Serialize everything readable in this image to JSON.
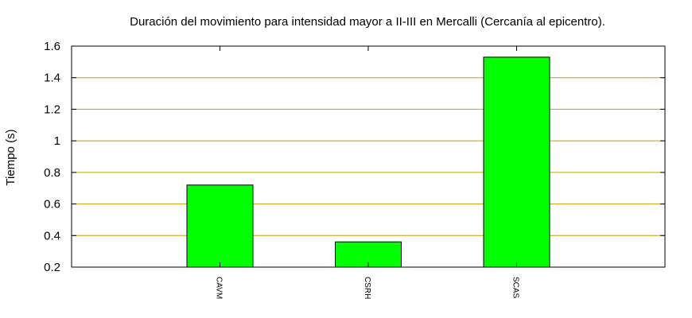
{
  "chart_data": {
    "type": "bar",
    "title": "Duración del movimiento para intensidad mayor a II-III en Mercalli (Cercanía al epicentro).",
    "xlabel": "",
    "ylabel": "Tiempo (s)",
    "categories": [
      "CAVM",
      "CSRH",
      "SCAS"
    ],
    "values": [
      0.72,
      0.36,
      1.53
    ],
    "ylim": [
      0.2,
      1.6
    ],
    "yticks": [
      "0.2",
      "0.4",
      "0.6",
      "0.8",
      "1",
      "1.2",
      "1.4",
      "1.6"
    ],
    "grid": true,
    "legend": "none",
    "colors": {
      "bar_fill": "#00ff00",
      "bar_stroke": "#000000",
      "grid": "#c8a000",
      "axis": "#000000"
    }
  }
}
